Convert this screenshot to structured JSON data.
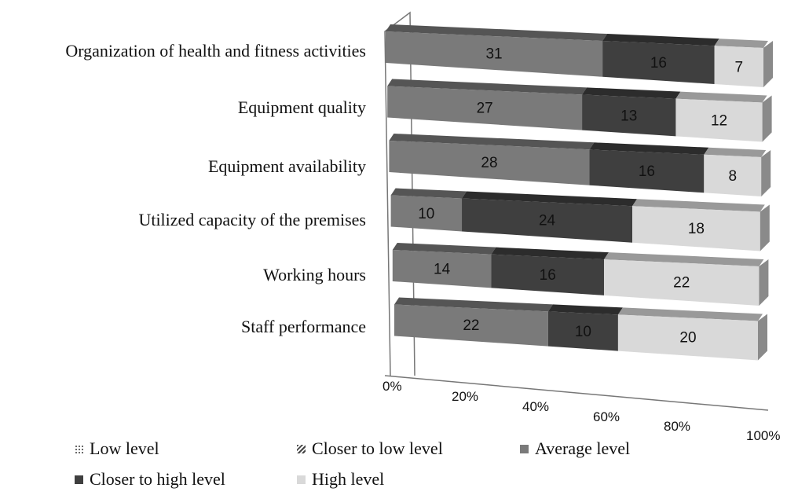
{
  "chart_data": {
    "type": "bar",
    "orientation": "horizontal",
    "stacked": "percent",
    "three_d": true,
    "categories": [
      "Organization of health and fitness activities",
      "Equipment quality",
      "Equipment availability",
      "Utilized capacity of the premises",
      "Working hours",
      "Staff performance"
    ],
    "series": [
      {
        "name": "Low level",
        "values": [
          0,
          0,
          0,
          0,
          0,
          0
        ],
        "color": "#bbbbbb"
      },
      {
        "name": "Closer to low level",
        "values": [
          0,
          0,
          0,
          0,
          0,
          0
        ],
        "color": "#999999"
      },
      {
        "name": "Average level",
        "values": [
          31,
          27,
          28,
          10,
          14,
          22
        ],
        "color": "#7a7a7a"
      },
      {
        "name": "Closer to high level",
        "values": [
          16,
          13,
          16,
          24,
          16,
          10
        ],
        "color": "#3f3f3f"
      },
      {
        "name": "High level",
        "values": [
          7,
          12,
          8,
          18,
          22,
          20
        ],
        "color": "#d9d9d9"
      }
    ],
    "x_ticks": [
      "0%",
      "20%",
      "40%",
      "60%",
      "80%",
      "100%"
    ],
    "xlim": [
      0,
      100
    ],
    "legend_position": "bottom",
    "title": "",
    "xlabel": "",
    "ylabel": ""
  }
}
